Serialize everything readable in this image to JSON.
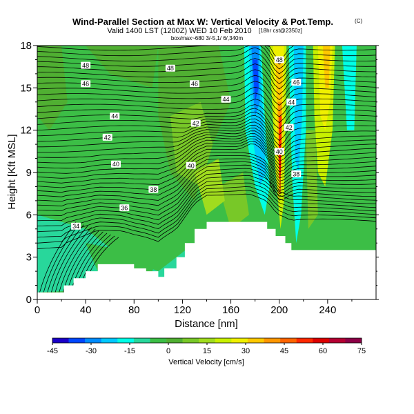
{
  "chart_data": {
    "type": "heatmap",
    "title": "Wind-Parallel Section at Max W: Vertical Velocity & Pot.Temp.",
    "title_mark": "(C)",
    "subtitle": "Valid 1400 LST (1200Z) WED 10 Feb 2010",
    "subtitle_note": "[18hr cst@2350z]",
    "subtitle2": "box/max~680 3/-5,1/ 6/,340m",
    "xlabel": "Distance [nm]",
    "ylabel": "Height [Kft MSL]",
    "xlim": [
      0,
      280
    ],
    "ylim": [
      0,
      18
    ],
    "x_ticks": [
      0,
      40,
      80,
      120,
      160,
      200,
      240
    ],
    "y_ticks": [
      0,
      3,
      6,
      9,
      12,
      15,
      18
    ],
    "colorbar": {
      "label": "Vertical Velocity [cm/s]",
      "ticks": [
        -45,
        -30,
        -15,
        0,
        15,
        30,
        45,
        60,
        75
      ],
      "range": [
        -45,
        75
      ],
      "colors": [
        "#1a00c8",
        "#0046ff",
        "#008cff",
        "#00c8ff",
        "#00ffe6",
        "#28d79b",
        "#3cbe46",
        "#50af32",
        "#78c828",
        "#a0dc1e",
        "#c8f000",
        "#f0f000",
        "#ffc800",
        "#ff9600",
        "#ff6400",
        "#ff2800",
        "#dc0000",
        "#b40032",
        "#8c0046"
      ]
    },
    "contour_labels": [
      {
        "x": 40,
        "y": 16.6,
        "text": "48"
      },
      {
        "x": 110,
        "y": 16.4,
        "text": "48"
      },
      {
        "x": 40,
        "y": 15.3,
        "text": "46"
      },
      {
        "x": 130,
        "y": 15.3,
        "text": "46"
      },
      {
        "x": 64,
        "y": 13.0,
        "text": "44"
      },
      {
        "x": 156,
        "y": 14.2,
        "text": "44"
      },
      {
        "x": 58,
        "y": 11.5,
        "text": "42"
      },
      {
        "x": 131,
        "y": 12.5,
        "text": "42"
      },
      {
        "x": 65,
        "y": 9.6,
        "text": "40"
      },
      {
        "x": 127,
        "y": 9.5,
        "text": "40"
      },
      {
        "x": 96,
        "y": 7.8,
        "text": "38"
      },
      {
        "x": 72,
        "y": 6.5,
        "text": "36"
      },
      {
        "x": 32,
        "y": 5.2,
        "text": "34"
      },
      {
        "x": 200,
        "y": 17.0,
        "text": "48"
      },
      {
        "x": 214,
        "y": 15.4,
        "text": "46"
      },
      {
        "x": 210,
        "y": 14.0,
        "text": "44"
      },
      {
        "x": 208,
        "y": 12.2,
        "text": "42"
      },
      {
        "x": 200,
        "y": 10.5,
        "text": "40"
      },
      {
        "x": 214,
        "y": 8.9,
        "text": "38"
      }
    ]
  }
}
